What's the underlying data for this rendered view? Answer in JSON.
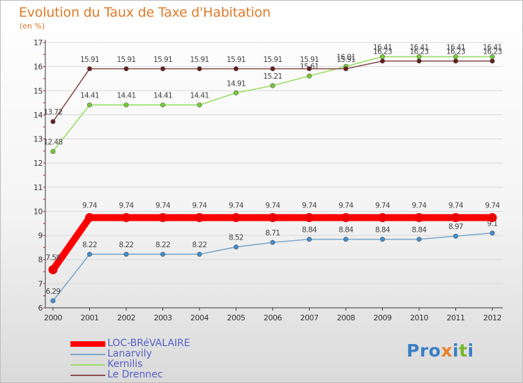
{
  "title": "Evolution du Taux de Taxe d'Habitation",
  "unit_label": "(en %)",
  "logo": {
    "text": "Proxiti",
    "colors": [
      "#3a7fc4",
      "#3a7fc4",
      "#3a7fc4",
      "#e8812a",
      "#3a7fc4",
      "#77b52e",
      "#3a7fc4"
    ]
  },
  "chart_data": {
    "type": "line",
    "title": "Evolution du Taux de Taxe d'Habitation",
    "ylabel": "(en %)",
    "xlabel": "",
    "ylim": [
      6,
      17
    ],
    "yticks": [
      6,
      7,
      8,
      9,
      10,
      11,
      12,
      13,
      14,
      15,
      16,
      17
    ],
    "grid": true,
    "legend_position": "bottom-left",
    "x": [
      "2000",
      "2001",
      "2002",
      "2003",
      "2004",
      "2005",
      "2006",
      "2007",
      "2008",
      "2009",
      "2010",
      "2011",
      "2012"
    ],
    "series": [
      {
        "name": "LOC-BRéVALAIRE",
        "color": "#ff0000",
        "marker": "#ee0000",
        "width": "thick",
        "values": [
          7.58,
          9.74,
          9.74,
          9.74,
          9.74,
          9.74,
          9.74,
          9.74,
          9.74,
          9.74,
          9.74,
          9.74,
          9.74
        ],
        "labels": [
          "7.58",
          "9.74",
          "9.74",
          "9.74",
          "9.74",
          "9.74",
          "9.74",
          "9.74",
          "9.74",
          "9.74",
          "9.74",
          "9.74",
          "9.74"
        ]
      },
      {
        "name": "Lanarvily",
        "color": "#7ba7cc",
        "marker": "#3f8fd1",
        "width": "thin",
        "values": [
          6.29,
          8.22,
          8.22,
          8.22,
          8.22,
          8.52,
          8.71,
          8.84,
          8.84,
          8.84,
          8.84,
          8.97,
          9.1
        ],
        "labels": [
          "6.29",
          "8.22",
          "8.22",
          "8.22",
          "8.22",
          "8.52",
          "8.71",
          "8.84",
          "8.84",
          "8.84",
          "8.84",
          "8.97",
          "9.1"
        ]
      },
      {
        "name": "Kernilis",
        "color": "#99dd66",
        "marker": "#77cc33",
        "width": "thin",
        "values": [
          12.48,
          14.41,
          14.41,
          14.41,
          14.41,
          14.91,
          15.21,
          15.61,
          16.01,
          16.41,
          16.41,
          16.41,
          16.41
        ],
        "labels": [
          "12.48",
          "14.41",
          "14.41",
          "14.41",
          "14.41",
          "14.91",
          "15.21",
          "15.61",
          "16.01",
          "16.41",
          "16.41",
          "16.41",
          "16.41"
        ]
      },
      {
        "name": "Le Drennec",
        "color": "#8a5050",
        "marker": "#661c1c",
        "width": "thin",
        "values": [
          13.72,
          15.91,
          15.91,
          15.91,
          15.91,
          15.91,
          15.91,
          15.91,
          15.91,
          16.23,
          16.23,
          16.23,
          16.23
        ],
        "labels": [
          "13.72",
          "15.91",
          "15.91",
          "15.91",
          "15.91",
          "15.91",
          "15.91",
          "15.91",
          "15.91",
          "16.23",
          "16.23",
          "16.23",
          "16.23"
        ]
      }
    ]
  }
}
